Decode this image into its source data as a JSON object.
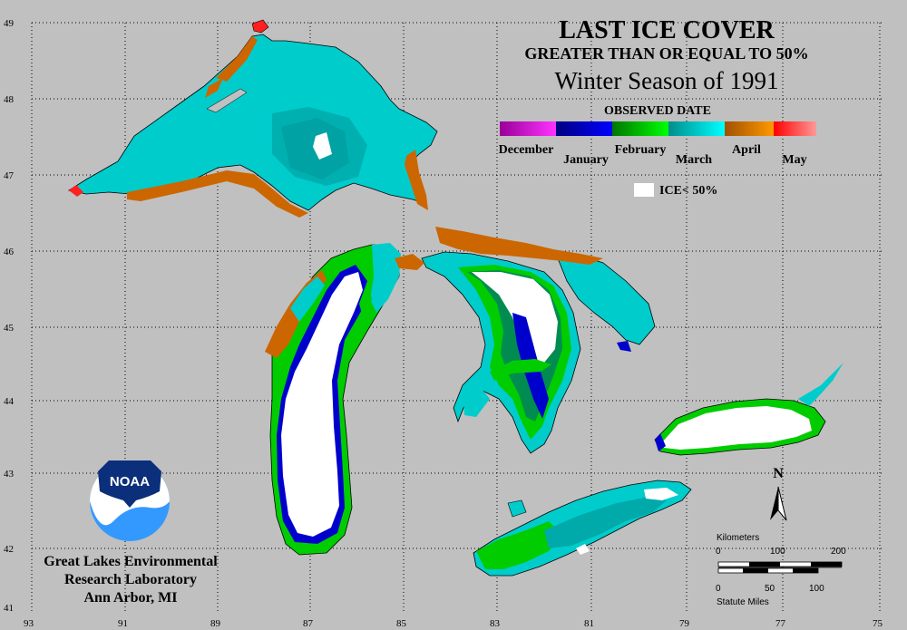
{
  "title": "LAST ICE COVER",
  "subtitle": "GREATER THAN OR EQUAL TO 50%",
  "season": "Winter Season of 1991",
  "legend": {
    "heading": "OBSERVED DATE",
    "months": [
      {
        "label": "December",
        "color": "#cc00cc"
      },
      {
        "label": "January",
        "color": "#0000cc"
      },
      {
        "label": "February",
        "color": "#00cc00"
      },
      {
        "label": "March",
        "color": "#00c8c8"
      },
      {
        "label": "April",
        "color": "#cc6600"
      },
      {
        "label": "May",
        "color": "#ff2020"
      }
    ],
    "ice_label": "ICE< 50%"
  },
  "axes": {
    "latitudes": [
      "49",
      "48",
      "47",
      "46",
      "45",
      "44",
      "43",
      "42",
      "41"
    ],
    "longitudes": [
      "93",
      "91",
      "89",
      "87",
      "85",
      "83",
      "81",
      "79",
      "77",
      "75"
    ]
  },
  "logo": {
    "text": "NOAA"
  },
  "credit": {
    "line1": "Great Lakes Environmental",
    "line2": "Research Laboratory",
    "line3": "Ann Arbor, MI"
  },
  "scale": {
    "km_label": "Kilometers",
    "km_ticks": [
      "0",
      "100",
      "200"
    ],
    "mi_ticks": [
      "0",
      "50",
      "100"
    ],
    "mi_label": "Statute Miles"
  },
  "north": "N"
}
